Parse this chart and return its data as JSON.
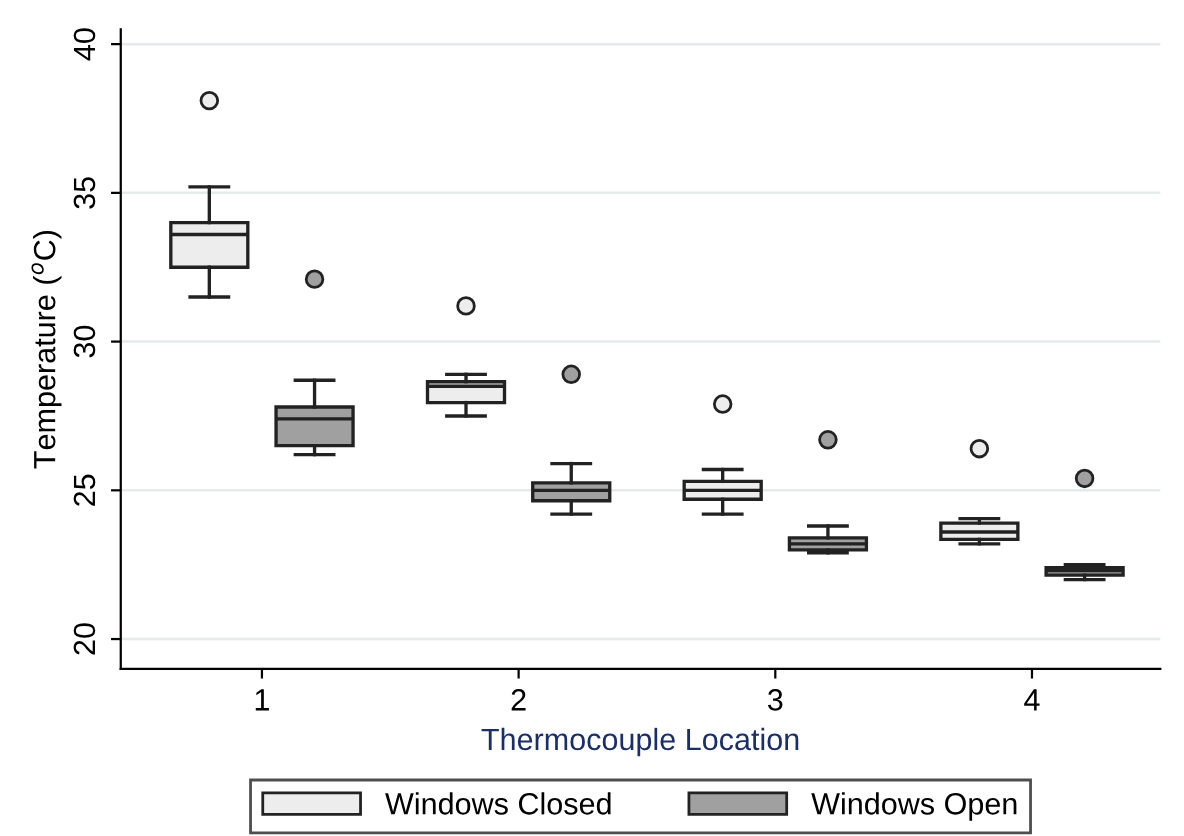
{
  "chart_data": {
    "type": "box",
    "xlabel": "Thermocouple Location",
    "ylabel": "Temperature ($^{o}$C)",
    "categories": [
      "1",
      "2",
      "3",
      "4"
    ],
    "ylim": [
      19,
      40.5
    ],
    "yticks": [
      20,
      25,
      30,
      35,
      40
    ],
    "grid": "y",
    "legend": "bottom",
    "series": [
      {
        "name": "Windows Closed",
        "color": "#ededed",
        "boxes": [
          {
            "low": 31.5,
            "q1": 32.5,
            "median": 33.6,
            "q3": 34.0,
            "high": 35.2,
            "outliers": [
              38.1
            ]
          },
          {
            "low": 27.5,
            "q1": 27.95,
            "median": 28.5,
            "q3": 28.65,
            "high": 28.9,
            "outliers": [
              31.2
            ]
          },
          {
            "low": 24.2,
            "q1": 24.7,
            "median": 25.0,
            "q3": 25.3,
            "high": 25.7,
            "outliers": [
              27.9
            ]
          },
          {
            "low": 23.2,
            "q1": 23.35,
            "median": 23.6,
            "q3": 23.9,
            "high": 24.05,
            "outliers": [
              26.4
            ]
          }
        ]
      },
      {
        "name": "Windows Open",
        "color": "#a0a0a0",
        "boxes": [
          {
            "low": 26.2,
            "q1": 26.5,
            "median": 27.4,
            "q3": 27.8,
            "high": 28.7,
            "outliers": [
              32.1
            ]
          },
          {
            "low": 24.2,
            "q1": 24.65,
            "median": 25.0,
            "q3": 25.25,
            "high": 25.9,
            "outliers": [
              28.9
            ]
          },
          {
            "low": 22.9,
            "q1": 23.0,
            "median": 23.2,
            "q3": 23.4,
            "high": 23.8,
            "outliers": [
              26.7
            ]
          },
          {
            "low": 22.0,
            "q1": 22.15,
            "median": 22.3,
            "q3": 22.4,
            "high": 22.5,
            "outliers": [
              25.4
            ]
          }
        ]
      }
    ]
  }
}
